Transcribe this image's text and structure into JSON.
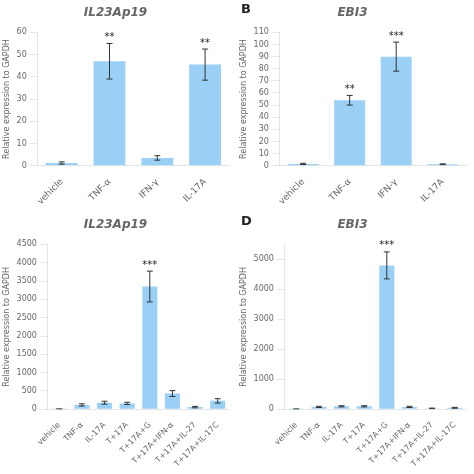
{
  "chart_data": [
    {
      "type": "bar",
      "title": "IL23Ap19",
      "categories": [
        "vehicle",
        "TNF-α",
        "IFN-γ",
        "IL-17A"
      ],
      "values": [
        1.2,
        47.0,
        3.5,
        45.5
      ],
      "errors": [
        0.5,
        8.0,
        1.0,
        7.0
      ],
      "significance": [
        null,
        "**",
        null,
        "**"
      ],
      "ylabel": "Relative expression to GAPDH",
      "ylim": [
        0,
        60
      ],
      "yticks": [
        0,
        10,
        20,
        30,
        40,
        50,
        60
      ],
      "grid": false
    },
    {
      "type": "bar",
      "title": "EBI3",
      "annotations": [
        "B"
      ],
      "categories": [
        "vehicle",
        "TNF-α",
        "IFN-γ",
        "IL-17A"
      ],
      "values": [
        1.5,
        54.0,
        90.0,
        1.2
      ],
      "errors": [
        0.5,
        4.0,
        12.0,
        0.3
      ],
      "significance": [
        null,
        "**",
        "***",
        null
      ],
      "ylabel": "Relative expression to GAPDH",
      "ylim": [
        0,
        110
      ],
      "yticks": [
        0,
        10,
        20,
        30,
        40,
        50,
        60,
        70,
        80,
        90,
        100,
        110
      ],
      "grid": false
    },
    {
      "type": "bar",
      "title": "IL23Ap19",
      "categories": [
        "vehicle",
        "TNF-α",
        "IL-17A",
        "T+17A",
        "T+17A+G",
        "T+17A+IFN-α",
        "T+17A+IL-27",
        "T+17A+IL-17C"
      ],
      "values": [
        5,
        120,
        180,
        160,
        3350,
        430,
        60,
        230
      ],
      "errors": [
        5,
        30,
        40,
        30,
        420,
        80,
        20,
        60
      ],
      "significance": [
        null,
        null,
        null,
        null,
        "***",
        null,
        null,
        null
      ],
      "ylabel": "Relative expression to GAPDH",
      "ylim": [
        0,
        4500
      ],
      "yticks": [
        0,
        500,
        1000,
        1500,
        2000,
        2500,
        3000,
        3500,
        4000,
        4500
      ],
      "grid": false
    },
    {
      "type": "bar",
      "title": "EBI3",
      "annotations": [
        "D"
      ],
      "categories": [
        "vehicle",
        "TNF-α",
        "IL-17A",
        "T+17A",
        "T+17A+G",
        "T+17A+IFN-α",
        "T+17A+IL-27",
        "T+17A+IL-17C"
      ],
      "values": [
        5,
        80,
        100,
        100,
        4800,
        80,
        30,
        50
      ],
      "errors": [
        5,
        20,
        20,
        20,
        450,
        20,
        10,
        15
      ],
      "significance": [
        null,
        null,
        null,
        null,
        "***",
        null,
        null,
        null
      ],
      "ylabel": "Relative expression to GAPDH",
      "ylim": [
        0,
        5500
      ],
      "yticks": [
        0,
        1000,
        2000,
        3000,
        4000,
        5000
      ],
      "grid": false
    }
  ]
}
